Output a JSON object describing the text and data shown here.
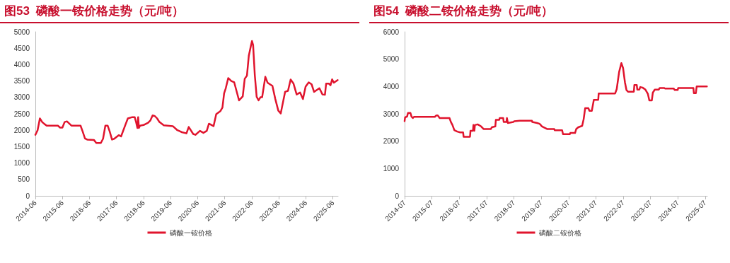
{
  "chart_data": [
    {
      "type": "line",
      "title": "图53  磷酸一铵价格走势（元/吨）",
      "xlim": [
        "2014-06-01",
        "2025-08-10"
      ],
      "xticks": [
        "2014-06",
        "2015-06",
        "2016-06",
        "2017-06",
        "2018-06",
        "2019-06",
        "2020-06",
        "2021-06",
        "2022-06",
        "2023-06",
        "2024-06",
        "2025-06"
      ],
      "ylim": [
        0,
        5000
      ],
      "yticks": [
        0,
        500,
        1000,
        1500,
        2000,
        2500,
        3000,
        3500,
        4000,
        4500,
        5000
      ],
      "grid": false,
      "legend": "bottom",
      "marker": "none",
      "line_style": "solid",
      "x": [
        "2014-06-01",
        "2014-07-01",
        "2014-08-01",
        "2014-09-01",
        "2014-10-01",
        "2014-11-01",
        "2015-04-01",
        "2015-05-01",
        "2015-06-01",
        "2015-07-01",
        "2015-08-01",
        "2015-10-01",
        "2016-02-01",
        "2016-03-01",
        "2016-04-01",
        "2016-05-01",
        "2016-08-01",
        "2016-09-01",
        "2016-11-01",
        "2016-12-01",
        "2017-01-01",
        "2017-02-01",
        "2017-03-01",
        "2017-04-01",
        "2017-05-01",
        "2017-07-01",
        "2017-08-01",
        "2017-10-01",
        "2017-11-01",
        "2018-01-01",
        "2018-02-01",
        "2018-02-20",
        "2018-03-10",
        "2018-03-20",
        "2018-03-30",
        "2018-04-15",
        "2018-06-01",
        "2018-08-01",
        "2018-09-01",
        "2018-10-01",
        "2018-11-01",
        "2018-12-01",
        "2019-01-01",
        "2019-03-01",
        "2019-07-01",
        "2019-09-01",
        "2019-11-01",
        "2020-01-01",
        "2020-02-01",
        "2020-04-01",
        "2020-05-01",
        "2020-07-01",
        "2020-08-17",
        "2020-10-01",
        "2020-10-31",
        "2021-01-01",
        "2021-02-06",
        "2021-04-02",
        "2021-05-01",
        "2021-05-24",
        "2021-06-15",
        "2021-07-18",
        "2021-08-29",
        "2021-10-07",
        "2021-11-15",
        "2021-12-11",
        "2022-01-30",
        "2022-02-26",
        "2022-03-28",
        "2022-04-22",
        "2022-05-19",
        "2022-06-04",
        "2022-06-19",
        "2022-07-12",
        "2022-08-06",
        "2022-09-01",
        "2022-09-26",
        "2022-10-19",
        "2022-12-01",
        "2022-12-31",
        "2023-03-07",
        "2023-04-15",
        "2023-05-25",
        "2023-06-27",
        "2023-07-23",
        "2023-08-25",
        "2023-10-03",
        "2023-11-08",
        "2023-12-17",
        "2024-01-28",
        "2024-03-14",
        "2024-04-22",
        "2024-05-28",
        "2024-07-09",
        "2024-08-17",
        "2024-09-19",
        "2024-11-30",
        "2025-01-11",
        "2025-02-13",
        "2025-03-01",
        "2025-04-09",
        "2025-04-29",
        "2025-05-21",
        "2025-06-13",
        "2025-08-04"
      ],
      "series": [
        {
          "name": "磷酸一铵价格",
          "color": "#e0142d",
          "values": [
            1860,
            2000,
            2360,
            2250,
            2190,
            2140,
            2140,
            2080,
            2080,
            2250,
            2270,
            2140,
            2140,
            1960,
            1750,
            1715,
            1700,
            1610,
            1610,
            1740,
            2140,
            2140,
            1960,
            1715,
            1740,
            1850,
            1810,
            2180,
            2360,
            2400,
            2400,
            2250,
            2070,
            2400,
            2070,
            2140,
            2160,
            2230,
            2300,
            2450,
            2430,
            2360,
            2250,
            2150,
            2125,
            2000,
            1940,
            1905,
            2100,
            1885,
            1860,
            1980,
            1920,
            1980,
            2200,
            2125,
            2490,
            2580,
            2690,
            3130,
            3280,
            3590,
            3500,
            3460,
            3130,
            2910,
            3030,
            3570,
            3665,
            4270,
            4560,
            4720,
            4600,
            3680,
            3020,
            2910,
            3005,
            3005,
            3630,
            3450,
            3350,
            2950,
            2600,
            2510,
            2800,
            3170,
            3200,
            3545,
            3420,
            3090,
            3150,
            2950,
            3330,
            3460,
            3400,
            3170,
            3280,
            3090,
            3080,
            3420,
            3420,
            3370,
            3550,
            3450,
            3530
          ]
        }
      ]
    },
    {
      "type": "line",
      "title": "图54  磷酸二铵价格走势（元/吨）",
      "xlim": [
        "2014-07-01",
        "2025-07-31"
      ],
      "xticks": [
        "2014-07",
        "2015-07",
        "2016-07",
        "2017-07",
        "2018-07",
        "2019-07",
        "2020-07",
        "2021-07",
        "2022-07",
        "2023-07",
        "2024-07",
        "2025-07"
      ],
      "ylim": [
        0,
        6000
      ],
      "yticks": [
        0,
        1000,
        2000,
        3000,
        4000,
        5000,
        6000
      ],
      "grid": false,
      "legend": "bottom",
      "marker": "none",
      "line_style": "solid",
      "x": [
        "2014-07-01",
        "2014-07-07",
        "2014-08-03",
        "2014-08-15",
        "2014-09-17",
        "2014-10-01",
        "2014-10-19",
        "2014-11-03",
        "2015-08-09",
        "2015-08-28",
        "2015-09-17",
        "2015-10-13",
        "2016-02-21",
        "2016-03-11",
        "2016-04-01",
        "2016-04-26",
        "2016-06-04",
        "2016-07-13",
        "2016-08-21",
        "2016-08-28",
        "2016-11-21",
        "2016-11-28",
        "2016-12-31",
        "2017-01-06",
        "2017-01-19",
        "2017-01-26",
        "2017-03-04",
        "2017-04-19",
        "2017-05-21",
        "2017-08-28",
        "2017-09-10",
        "2017-10-26",
        "2017-11-02",
        "2017-12-17",
        "2017-12-23",
        "2018-02-08",
        "2018-02-15",
        "2018-03-23",
        "2018-03-30",
        "2018-04-12",
        "2018-06-23",
        "2018-07-06",
        "2018-09-17",
        "2019-02-27",
        "2019-03-04",
        "2019-05-08",
        "2019-06-10",
        "2019-07-12",
        "2019-09-17",
        "2019-12-23",
        "2019-12-29",
        "2020-04-06",
        "2020-04-18",
        "2020-07-18",
        "2020-07-24",
        "2020-09-26",
        "2020-10-12",
        "2020-11-08",
        "2020-12-30",
        "2021-01-19",
        "2021-02-08",
        "2021-03-23",
        "2021-04-06",
        "2021-05-08",
        "2021-06-04",
        "2021-08-02",
        "2021-08-08",
        "2022-03-16",
        "2022-04-06",
        "2022-05-08",
        "2022-06-07",
        "2022-06-30",
        "2022-07-25",
        "2022-08-14",
        "2022-09-04",
        "2022-11-21",
        "2022-11-28",
        "2022-12-30",
        "2023-01-06",
        "2023-02-02",
        "2023-02-15",
        "2023-03-17",
        "2023-04-25",
        "2023-05-28",
        "2023-06-16",
        "2023-07-19",
        "2023-08-02",
        "2023-08-28",
        "2023-10-19",
        "2023-11-02",
        "2023-12-30",
        "2024-01-13",
        "2024-05-07",
        "2024-05-21",
        "2024-06-29",
        "2024-07-06",
        "2025-01-25",
        "2025-02-01",
        "2025-02-27",
        "2025-03-10",
        "2025-07-25"
      ],
      "series": [
        {
          "name": "磷酸二铵价格",
          "color": "#e0142d",
          "values": [
            2730,
            2870,
            2900,
            3030,
            3030,
            2900,
            2845,
            2890,
            2890,
            2940,
            2940,
            2845,
            2845,
            2700,
            2590,
            2400,
            2350,
            2320,
            2320,
            2160,
            2160,
            2380,
            2380,
            2590,
            2380,
            2590,
            2615,
            2540,
            2445,
            2445,
            2510,
            2540,
            2780,
            2780,
            2845,
            2845,
            2700,
            2700,
            2845,
            2665,
            2700,
            2730,
            2750,
            2750,
            2700,
            2665,
            2635,
            2540,
            2445,
            2445,
            2400,
            2400,
            2255,
            2255,
            2300,
            2300,
            2445,
            2510,
            2560,
            2805,
            3205,
            3205,
            3110,
            3110,
            3510,
            3510,
            3745,
            3745,
            3905,
            4530,
            4855,
            4675,
            4150,
            3870,
            3810,
            3810,
            4055,
            4055,
            3885,
            3885,
            3980,
            3960,
            3885,
            3725,
            3490,
            3490,
            3775,
            3885,
            3885,
            3945,
            3945,
            3925,
            3925,
            3870,
            3870,
            3945,
            3945,
            3755,
            3755,
            4000,
            4000
          ]
        }
      ]
    }
  ]
}
